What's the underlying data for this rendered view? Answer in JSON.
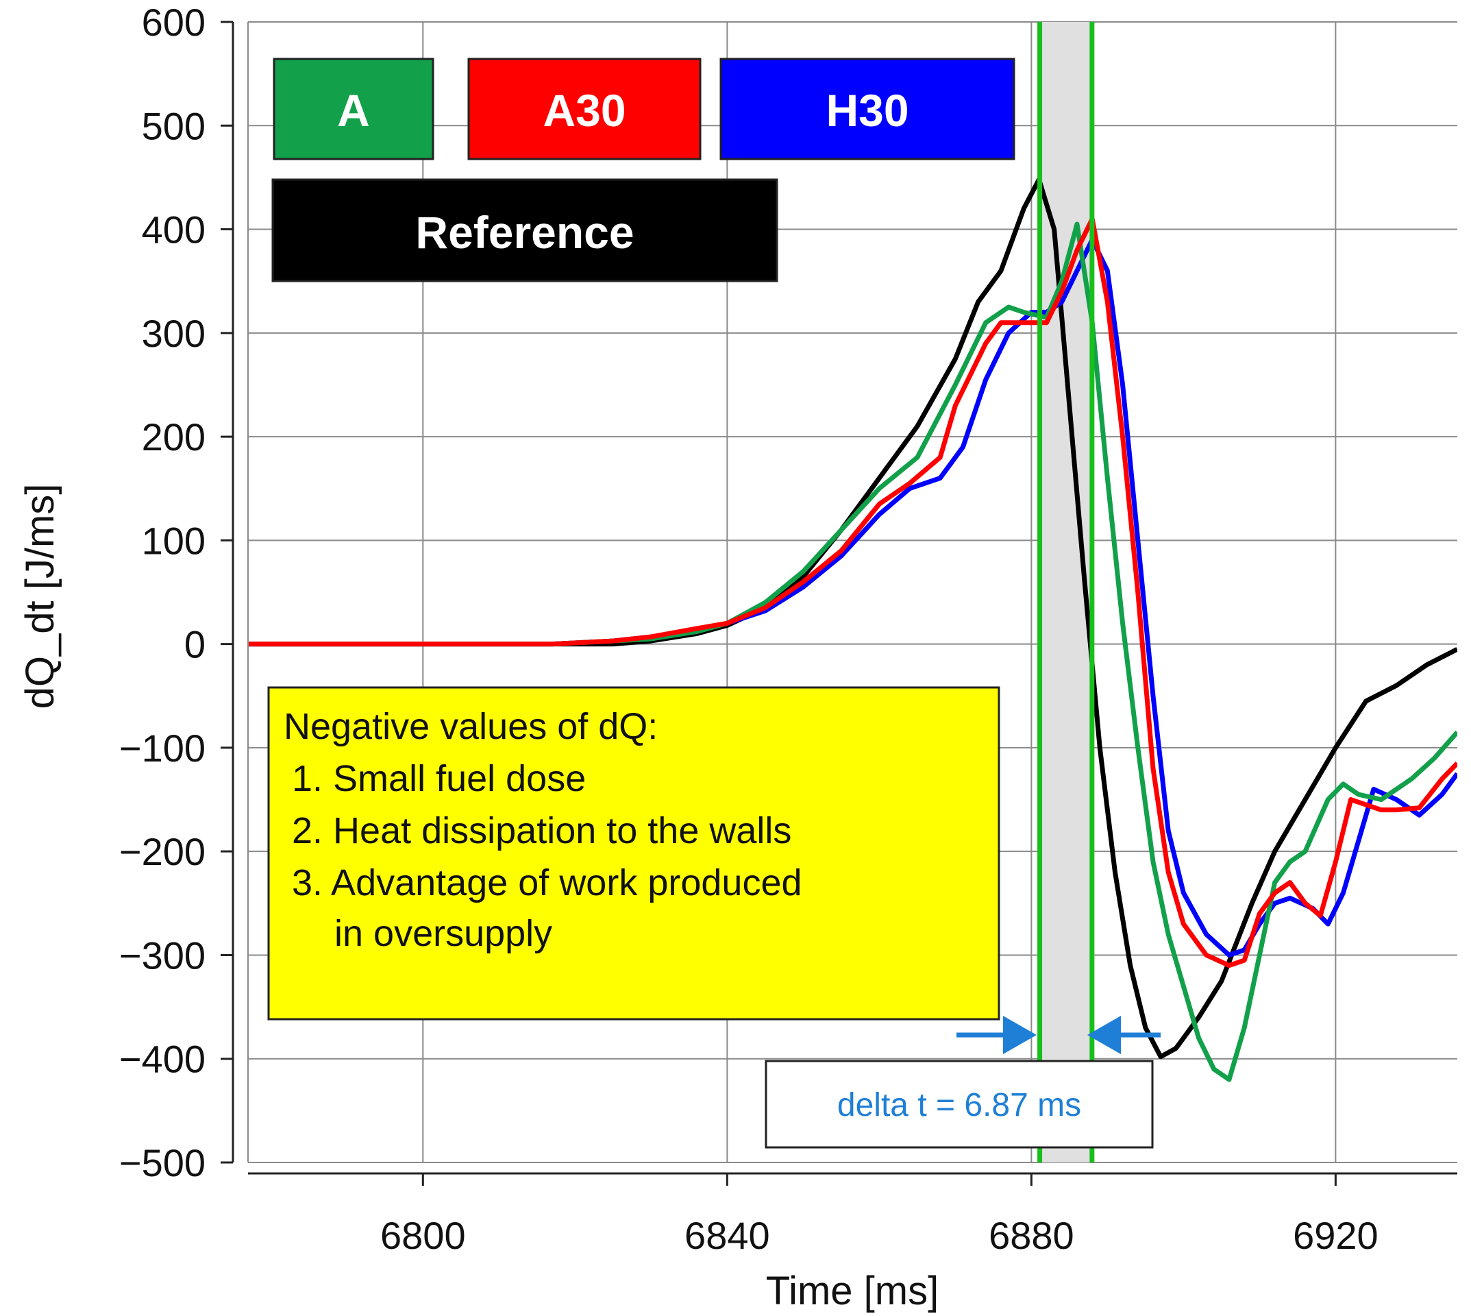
{
  "chart_data": {
    "type": "line",
    "xlabel": "Time [ms]",
    "ylabel": "dQ_dt [J/ms]",
    "xlim": [
      6777,
      6936
    ],
    "ylim": [
      -500,
      600
    ],
    "x_ticks": [
      6800,
      6840,
      6880,
      6920
    ],
    "y_ticks": [
      600,
      500,
      400,
      300,
      200,
      100,
      0,
      -100,
      -200,
      -300,
      -400,
      -500
    ],
    "x_tick_labels": [
      "6800",
      "6840",
      "6880",
      "6920"
    ],
    "y_tick_labels": [
      "600",
      "500",
      "400",
      "300",
      "200",
      "100",
      "0",
      "−100",
      "−200",
      "−300",
      "−400",
      "−500"
    ],
    "grid": true,
    "legend": [
      {
        "label": "A",
        "color": "#12a14a"
      },
      {
        "label": "A30",
        "color": "#ff0000"
      },
      {
        "label": "H30",
        "color": "#0000ff"
      },
      {
        "label": "Reference",
        "color": "#000000"
      }
    ],
    "series": [
      {
        "name": "Reference",
        "color": "#000000",
        "x": [
          6777,
          6825,
          6830,
          6836,
          6840,
          6845,
          6850,
          6855,
          6860,
          6865,
          6870,
          6873,
          6876,
          6879,
          6881,
          6883,
          6885,
          6887,
          6889,
          6891,
          6893,
          6895,
          6897,
          6899,
          6902,
          6905,
          6909,
          6912,
          6916,
          6920,
          6924,
          6928,
          6932,
          6936
        ],
        "y": [
          0,
          0,
          3,
          10,
          18,
          35,
          65,
          110,
          160,
          210,
          275,
          330,
          360,
          420,
          448,
          400,
          230,
          60,
          -100,
          -220,
          -310,
          -370,
          -398,
          -390,
          -360,
          -325,
          -250,
          -200,
          -150,
          -100,
          -55,
          -40,
          -20,
          -5
        ]
      },
      {
        "name": "A",
        "color": "#12a14a",
        "x": [
          6777,
          6817,
          6825,
          6830,
          6836,
          6840,
          6845,
          6850,
          6855,
          6860,
          6865,
          6870,
          6874,
          6877,
          6879,
          6882,
          6884,
          6886,
          6888,
          6890,
          6892,
          6894,
          6896,
          6898,
          6900,
          6902,
          6904,
          6906,
          6908,
          6910,
          6912,
          6914,
          6916,
          6919,
          6921,
          6923,
          6926,
          6930,
          6933,
          6936
        ],
        "y": [
          0,
          0,
          3,
          5,
          12,
          20,
          40,
          70,
          110,
          150,
          180,
          250,
          310,
          325,
          320,
          315,
          350,
          405,
          310,
          160,
          20,
          -100,
          -210,
          -280,
          -330,
          -380,
          -410,
          -420,
          -370,
          -300,
          -230,
          -210,
          -200,
          -150,
          -135,
          -145,
          -150,
          -130,
          -110,
          -85
        ]
      },
      {
        "name": "A30",
        "color": "#ff0000",
        "x": [
          6777,
          6817,
          6825,
          6830,
          6836,
          6840,
          6845,
          6850,
          6855,
          6860,
          6864,
          6868,
          6870,
          6874,
          6876,
          6880,
          6882,
          6884,
          6886,
          6888,
          6890,
          6892,
          6894,
          6896,
          6898,
          6900,
          6903,
          6906,
          6908,
          6910,
          6912,
          6914,
          6916,
          6918,
          6920,
          6922,
          6924,
          6926,
          6928,
          6931,
          6934,
          6936
        ],
        "y": [
          0,
          0,
          3,
          7,
          15,
          20,
          35,
          60,
          90,
          135,
          155,
          180,
          230,
          290,
          310,
          310,
          310,
          340,
          380,
          410,
          330,
          200,
          50,
          -120,
          -220,
          -270,
          -300,
          -310,
          -305,
          -260,
          -240,
          -230,
          -250,
          -262,
          -210,
          -150,
          -155,
          -160,
          -160,
          -158,
          -130,
          -115
        ]
      },
      {
        "name": "H30",
        "color": "#0000ff",
        "x": [
          6777,
          6817,
          6825,
          6830,
          6836,
          6840,
          6845,
          6850,
          6855,
          6860,
          6864,
          6868,
          6871,
          6874,
          6877,
          6880,
          6882,
          6884,
          6886,
          6888,
          6890,
          6892,
          6894,
          6896,
          6898,
          6900,
          6903,
          6906,
          6908,
          6910,
          6912,
          6914,
          6917,
          6919,
          6921,
          6923,
          6925,
          6928,
          6931,
          6934,
          6936
        ],
        "y": [
          0,
          0,
          3,
          7,
          14,
          20,
          32,
          55,
          85,
          125,
          150,
          160,
          190,
          255,
          300,
          320,
          320,
          330,
          360,
          390,
          360,
          250,
          100,
          -50,
          -180,
          -240,
          -280,
          -300,
          -295,
          -270,
          -250,
          -245,
          -255,
          -270,
          -240,
          -190,
          -140,
          -150,
          -165,
          -145,
          -125
        ]
      }
    ],
    "markers": {
      "vertical_lines_x": [
        6881.1,
        6887.97
      ],
      "shaded_interval": [
        6881.1,
        6887.97
      ],
      "color": "#17c01c"
    },
    "annotations": {
      "note_title": "Negative values of dQ:",
      "note_items": [
        "1. Small fuel dose",
        "2. Heat dissipation to the walls",
        "3. Advantage of work produced",
        "in oversupply"
      ],
      "delta_label": "delta t = 6.87 ms",
      "delta_color": "#1f7fd6",
      "note_bg": "#ffff00",
      "shade_color": "#e0e0e0"
    }
  }
}
